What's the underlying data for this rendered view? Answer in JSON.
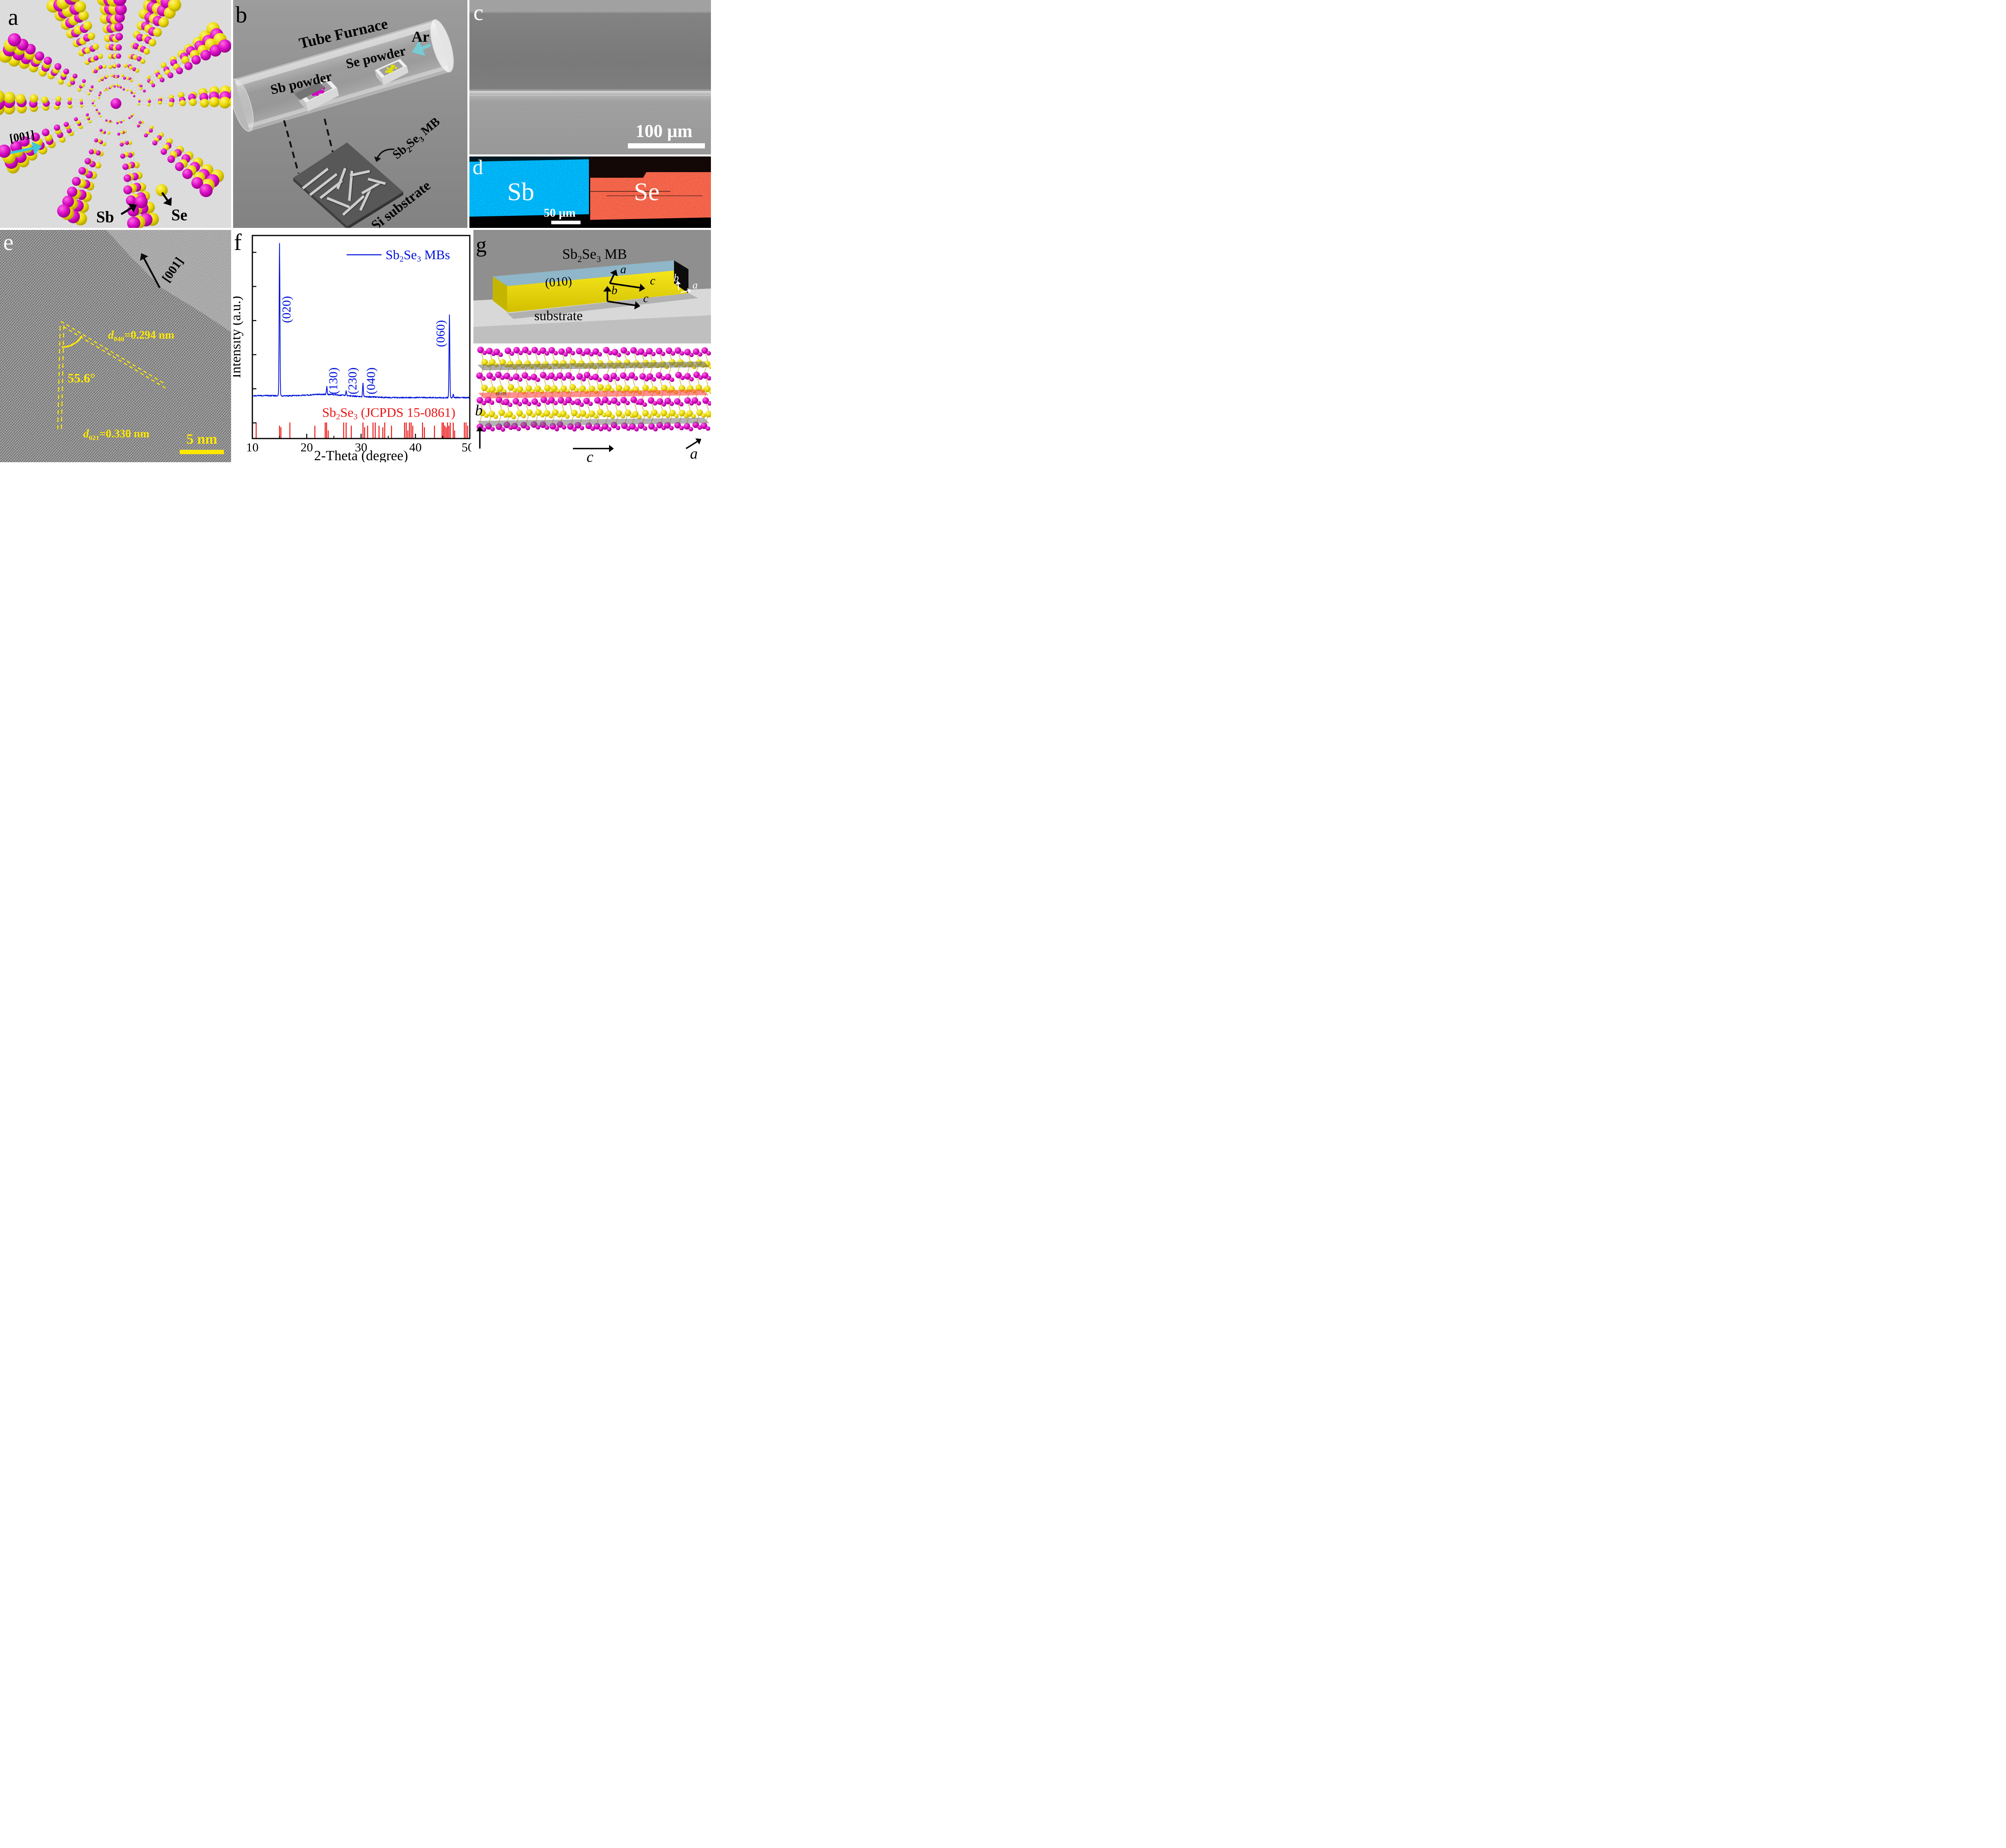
{
  "panels": {
    "a": {
      "label": "a",
      "direction_label": "[001]",
      "sb_label": "Sb",
      "se_label": "Se",
      "colors": {
        "sb_atom": "#cf06c0",
        "se_atom": "#e9d804",
        "bond": "#d2d2d2",
        "direction_arrow": "#3ec8da",
        "background": "#dcdcdc"
      }
    },
    "b": {
      "label": "b",
      "furnace_label": "Tube Furnace",
      "gas_label": "Ar",
      "sb_powder_label": "Sb powder",
      "se_powder_label": "Se powder",
      "product_label": {
        "p1": "Sb",
        "s1": "2",
        "p2": "Se",
        "s2": "3",
        "p3": " MB"
      },
      "substrate_label": "Si substrate",
      "colors": {
        "background": "#8f8f8f",
        "gas_arrow": "#74ccd4",
        "sb_powder": "#d203c3",
        "se_powder": "#e0e000",
        "substrate": "#585858",
        "belt": "#cdcdcd"
      }
    },
    "c": {
      "label": "c",
      "scale_bar": "100 μm"
    },
    "d": {
      "label": "d",
      "sb_map_label": "Sb",
      "se_map_label": "Se",
      "scale_bar": "50 μm",
      "colors": {
        "sb_map": "#1477c8",
        "se_map": "#dc1414"
      }
    },
    "e": {
      "label": "e",
      "direction_label": "[001]",
      "angle_label": "55.6°",
      "d040_label": {
        "d": "d",
        "sub": "040",
        "value": "=0.294 nm"
      },
      "d021_label": {
        "d": "d",
        "sub": "021",
        "value": "=0.330 nm"
      },
      "scale_bar": "5 nm",
      "colors": {
        "annotation": "#ffe800"
      }
    },
    "f": {
      "label": "f"
    },
    "g": {
      "label": "g",
      "title": {
        "p1": "Sb",
        "s1": "2",
        "p2": "Se",
        "s2": "3",
        "p3": " MB"
      },
      "facet_label": "(010)",
      "substrate_label": "substrate",
      "plane_label": "(010)",
      "axis_top_a": "a",
      "axis_top_c": "c",
      "axis_front_b": "b",
      "axis_front_c": "c",
      "axis_end_b": "b",
      "axis_end_a": "a",
      "axis_crystal_b": "b",
      "axis_crystal_c": "c",
      "axis_crystal_a": "a",
      "colors": {
        "background": "#8f8f8f",
        "top_face": "#8fb6c9",
        "front_face": "#e8d70b",
        "end_face": "#0c0c0c",
        "substrate": "#d8d8d8"
      }
    }
  },
  "chart_data": {
    "type": "line",
    "title": "",
    "xlabel": "2-Theta (degree)",
    "ylabel": "Intensity (a.u.)",
    "xlim": [
      10,
      50
    ],
    "x_major_ticks": [
      10,
      20,
      30,
      40,
      50
    ],
    "x_minor_ticks": [
      15,
      25,
      35,
      45
    ],
    "grid": false,
    "legend_position": "top-right",
    "series": [
      {
        "name_parts": {
          "p1": "Sb",
          "s1": "2",
          "p2": "Se",
          "s2": "3",
          "p3": " MBs"
        },
        "color": "#0013d8",
        "peaks": [
          {
            "two_theta": 15.0,
            "rel_intensity": 1.0,
            "hkl": "(020)"
          },
          {
            "two_theta": 23.7,
            "rel_intensity": 0.052,
            "hkl": "(130)"
          },
          {
            "two_theta": 27.25,
            "rel_intensity": 0.03,
            "hkl": "(230)"
          },
          {
            "two_theta": 30.35,
            "rel_intensity": 0.086,
            "hkl": "(040)"
          },
          {
            "two_theta": 46.25,
            "rel_intensity": 0.545,
            "hkl": "(060)"
          },
          {
            "two_theta": 46.95,
            "rel_intensity": 0.02,
            "hkl": ""
          }
        ]
      }
    ],
    "reference": {
      "name_parts": {
        "p1": "Sb",
        "s1": "2",
        "p2": "Se",
        "s2": "3",
        "p3": " (JCPDS 15-0861)"
      },
      "color": "#ed1414",
      "two_theta": [
        10.7,
        15.0,
        15.25,
        16.9,
        21.5,
        23.4,
        23.65,
        23.95,
        26.8,
        27.25,
        28.2,
        30.35,
        30.65,
        31.2,
        32.2,
        32.6,
        33.3,
        34.0,
        34.35,
        35.6,
        38.0,
        38.3,
        38.6,
        38.9,
        39.2,
        39.5,
        41.3,
        41.65,
        43.5,
        44.9,
        45.15,
        45.4,
        45.65,
        45.9,
        46.15,
        46.4,
        46.95,
        47.2,
        49.0,
        49.3,
        49.6
      ]
    }
  }
}
